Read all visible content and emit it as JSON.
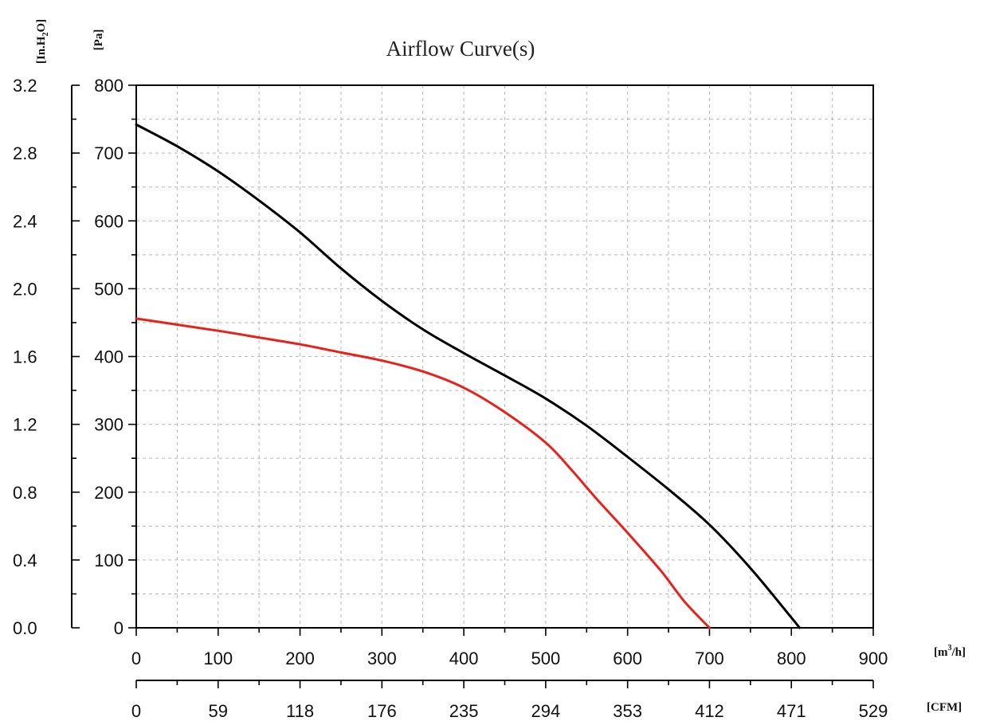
{
  "chart_data": {
    "type": "line",
    "title": "Airflow Curve(s)",
    "x_primary": {
      "unit_base": "[m",
      "unit_sup": "3",
      "unit_tail": "/h]",
      "range": [
        0,
        900
      ],
      "ticks": [
        "0",
        "100",
        "200",
        "300",
        "400",
        "500",
        "600",
        "700",
        "800",
        "900"
      ]
    },
    "x_secondary": {
      "unit": "[CFM]",
      "ticks": [
        "0",
        "59",
        "118",
        "176",
        "235",
        "294",
        "353",
        "412",
        "471",
        "529"
      ]
    },
    "y_primary": {
      "unit": "[Pa]",
      "range": [
        0,
        800
      ],
      "ticks": [
        "0",
        "100",
        "200",
        "300",
        "400",
        "500",
        "600",
        "700",
        "800"
      ]
    },
    "y_secondary": {
      "unit_base": "[In.H",
      "unit_sub": "2",
      "unit_tail": "O]",
      "ticks": [
        "0.0",
        "0.4",
        "0.8",
        "1.2",
        "1.6",
        "2.0",
        "2.4",
        "2.8",
        "3.2"
      ]
    },
    "grid": true,
    "series": [
      {
        "color": "#000000",
        "x": [
          0,
          50,
          100,
          150,
          200,
          250,
          300,
          350,
          400,
          450,
          500,
          550,
          600,
          650,
          700,
          750,
          800,
          810
        ],
        "y": [
          742,
          710,
          673,
          630,
          583,
          530,
          482,
          440,
          405,
          372,
          338,
          298,
          252,
          204,
          152,
          88,
          15,
          0
        ]
      },
      {
        "color": "#e8211b",
        "x": [
          0,
          50,
          100,
          150,
          200,
          250,
          300,
          350,
          400,
          450,
          500,
          530,
          560,
          600,
          640,
          670,
          700
        ],
        "y": [
          456,
          447,
          438,
          428,
          418,
          406,
          394,
          378,
          354,
          318,
          273,
          235,
          193,
          140,
          85,
          38,
          0
        ]
      }
    ]
  }
}
